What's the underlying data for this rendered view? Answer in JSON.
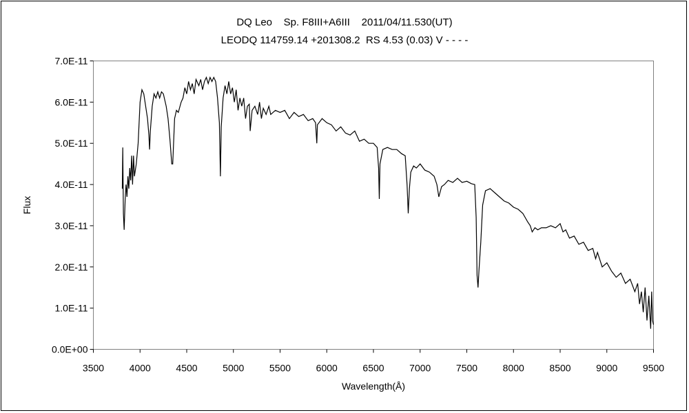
{
  "chart_data": {
    "type": "line",
    "title": "DQ Leo    Sp. F8III+A6III    2011/04/11.530(UT)",
    "subtitle": "LEODQ 114759.14 +201308.2  RS 4.53 (0.03) V - - - -",
    "xlabel": "Wavelength(Å)",
    "ylabel": "Flux",
    "xlim": [
      3500,
      9500
    ],
    "ylim": [
      0,
      7e-11
    ],
    "y_scale_unit": 1e-11,
    "xticks": [
      "3500",
      "4000",
      "4500",
      "5000",
      "5500",
      "6000",
      "6500",
      "7000",
      "7500",
      "8000",
      "8500",
      "9000",
      "9500"
    ],
    "yticks": [
      "0.0E+00",
      "1.0E-11",
      "2.0E-11",
      "3.0E-11",
      "4.0E-11",
      "5.0E-11",
      "6.0E-11",
      "7.0E-11"
    ],
    "grid": false,
    "legend": "none",
    "series": [
      {
        "name": "Flux",
        "color": "#000000",
        "points_x_flux_e-11": [
          [
            3810,
            3.9
          ],
          [
            3815,
            4.9
          ],
          [
            3822,
            3.3
          ],
          [
            3830,
            2.9
          ],
          [
            3840,
            3.6
          ],
          [
            3850,
            4.0
          ],
          [
            3860,
            3.7
          ],
          [
            3870,
            4.2
          ],
          [
            3880,
            3.9
          ],
          [
            3890,
            4.4
          ],
          [
            3900,
            4.1
          ],
          [
            3910,
            4.7
          ],
          [
            3920,
            4.0
          ],
          [
            3930,
            4.7
          ],
          [
            3940,
            4.2
          ],
          [
            3960,
            4.5
          ],
          [
            3980,
            5.0
          ],
          [
            4000,
            6.0
          ],
          [
            4020,
            6.3
          ],
          [
            4040,
            6.2
          ],
          [
            4060,
            5.9
          ],
          [
            4080,
            5.6
          ],
          [
            4095,
            5.2
          ],
          [
            4102,
            4.85
          ],
          [
            4110,
            5.3
          ],
          [
            4130,
            5.9
          ],
          [
            4150,
            6.2
          ],
          [
            4170,
            6.1
          ],
          [
            4190,
            6.25
          ],
          [
            4210,
            6.1
          ],
          [
            4230,
            6.25
          ],
          [
            4250,
            6.2
          ],
          [
            4280,
            5.9
          ],
          [
            4300,
            5.6
          ],
          [
            4320,
            5.1
          ],
          [
            4340,
            4.5
          ],
          [
            4350,
            4.5
          ],
          [
            4370,
            5.6
          ],
          [
            4390,
            5.8
          ],
          [
            4410,
            5.75
          ],
          [
            4440,
            6.0
          ],
          [
            4460,
            6.1
          ],
          [
            4480,
            6.35
          ],
          [
            4500,
            6.2
          ],
          [
            4520,
            6.5
          ],
          [
            4540,
            6.3
          ],
          [
            4560,
            6.45
          ],
          [
            4580,
            6.2
          ],
          [
            4600,
            6.55
          ],
          [
            4630,
            6.4
          ],
          [
            4650,
            6.55
          ],
          [
            4670,
            6.3
          ],
          [
            4690,
            6.5
          ],
          [
            4710,
            6.6
          ],
          [
            4730,
            6.45
          ],
          [
            4750,
            6.6
          ],
          [
            4770,
            6.5
          ],
          [
            4790,
            6.6
          ],
          [
            4810,
            6.5
          ],
          [
            4830,
            6.1
          ],
          [
            4850,
            5.5
          ],
          [
            4861,
            4.2
          ],
          [
            4870,
            5.4
          ],
          [
            4890,
            6.1
          ],
          [
            4910,
            6.4
          ],
          [
            4930,
            6.2
          ],
          [
            4950,
            6.5
          ],
          [
            4970,
            6.2
          ],
          [
            4990,
            6.35
          ],
          [
            5010,
            6.0
          ],
          [
            5030,
            6.3
          ],
          [
            5050,
            5.8
          ],
          [
            5070,
            6.1
          ],
          [
            5090,
            5.9
          ],
          [
            5110,
            6.1
          ],
          [
            5130,
            5.6
          ],
          [
            5150,
            5.9
          ],
          [
            5170,
            5.95
          ],
          [
            5180,
            5.3
          ],
          [
            5200,
            5.8
          ],
          [
            5230,
            5.9
          ],
          [
            5260,
            5.7
          ],
          [
            5280,
            6.0
          ],
          [
            5300,
            5.6
          ],
          [
            5320,
            5.85
          ],
          [
            5350,
            5.7
          ],
          [
            5380,
            5.9
          ],
          [
            5400,
            5.7
          ],
          [
            5450,
            5.8
          ],
          [
            5500,
            5.75
          ],
          [
            5550,
            5.8
          ],
          [
            5600,
            5.6
          ],
          [
            5650,
            5.75
          ],
          [
            5700,
            5.65
          ],
          [
            5750,
            5.7
          ],
          [
            5800,
            5.55
          ],
          [
            5850,
            5.6
          ],
          [
            5880,
            5.5
          ],
          [
            5893,
            5.0
          ],
          [
            5900,
            5.45
          ],
          [
            5950,
            5.6
          ],
          [
            6000,
            5.5
          ],
          [
            6050,
            5.45
          ],
          [
            6100,
            5.3
          ],
          [
            6150,
            5.4
          ],
          [
            6200,
            5.25
          ],
          [
            6250,
            5.2
          ],
          [
            6300,
            5.3
          ],
          [
            6350,
            5.05
          ],
          [
            6400,
            5.1
          ],
          [
            6450,
            5.0
          ],
          [
            6500,
            5.0
          ],
          [
            6540,
            4.9
          ],
          [
            6555,
            4.4
          ],
          [
            6563,
            3.65
          ],
          [
            6570,
            4.5
          ],
          [
            6600,
            4.85
          ],
          [
            6650,
            4.9
          ],
          [
            6700,
            4.85
          ],
          [
            6750,
            4.85
          ],
          [
            6800,
            4.75
          ],
          [
            6840,
            4.7
          ],
          [
            6860,
            4.0
          ],
          [
            6873,
            3.3
          ],
          [
            6885,
            3.9
          ],
          [
            6900,
            4.3
          ],
          [
            6930,
            4.45
          ],
          [
            6960,
            4.4
          ],
          [
            7000,
            4.5
          ],
          [
            7050,
            4.35
          ],
          [
            7100,
            4.3
          ],
          [
            7150,
            4.2
          ],
          [
            7180,
            4.0
          ],
          [
            7200,
            3.7
          ],
          [
            7230,
            3.95
          ],
          [
            7260,
            4.0
          ],
          [
            7300,
            4.1
          ],
          [
            7350,
            4.05
          ],
          [
            7400,
            4.15
          ],
          [
            7450,
            4.05
          ],
          [
            7500,
            4.08
          ],
          [
            7550,
            4.02
          ],
          [
            7585,
            4.0
          ],
          [
            7600,
            3.2
          ],
          [
            7610,
            1.8
          ],
          [
            7620,
            1.5
          ],
          [
            7630,
            1.9
          ],
          [
            7650,
            2.6
          ],
          [
            7670,
            3.5
          ],
          [
            7700,
            3.85
          ],
          [
            7750,
            3.9
          ],
          [
            7800,
            3.8
          ],
          [
            7850,
            3.7
          ],
          [
            7900,
            3.6
          ],
          [
            7950,
            3.55
          ],
          [
            8000,
            3.45
          ],
          [
            8050,
            3.4
          ],
          [
            8100,
            3.3
          ],
          [
            8150,
            3.1
          ],
          [
            8180,
            3.0
          ],
          [
            8200,
            2.85
          ],
          [
            8230,
            2.95
          ],
          [
            8260,
            2.9
          ],
          [
            8300,
            2.95
          ],
          [
            8350,
            2.95
          ],
          [
            8400,
            3.0
          ],
          [
            8450,
            2.95
          ],
          [
            8500,
            3.05
          ],
          [
            8530,
            2.85
          ],
          [
            8560,
            2.9
          ],
          [
            8600,
            2.7
          ],
          [
            8650,
            2.75
          ],
          [
            8700,
            2.55
          ],
          [
            8750,
            2.6
          ],
          [
            8800,
            2.4
          ],
          [
            8850,
            2.45
          ],
          [
            8880,
            2.2
          ],
          [
            8900,
            2.35
          ],
          [
            8950,
            2.0
          ],
          [
            9000,
            2.1
          ],
          [
            9050,
            1.9
          ],
          [
            9100,
            1.75
          ],
          [
            9150,
            1.85
          ],
          [
            9200,
            1.6
          ],
          [
            9250,
            1.7
          ],
          [
            9300,
            1.4
          ],
          [
            9330,
            1.6
          ],
          [
            9350,
            1.1
          ],
          [
            9370,
            1.4
          ],
          [
            9390,
            0.9
          ],
          [
            9410,
            1.5
          ],
          [
            9430,
            0.7
          ],
          [
            9450,
            1.3
          ],
          [
            9470,
            0.5
          ],
          [
            9480,
            1.4
          ],
          [
            9490,
            0.7
          ],
          [
            9500,
            0.6
          ]
        ]
      }
    ]
  }
}
